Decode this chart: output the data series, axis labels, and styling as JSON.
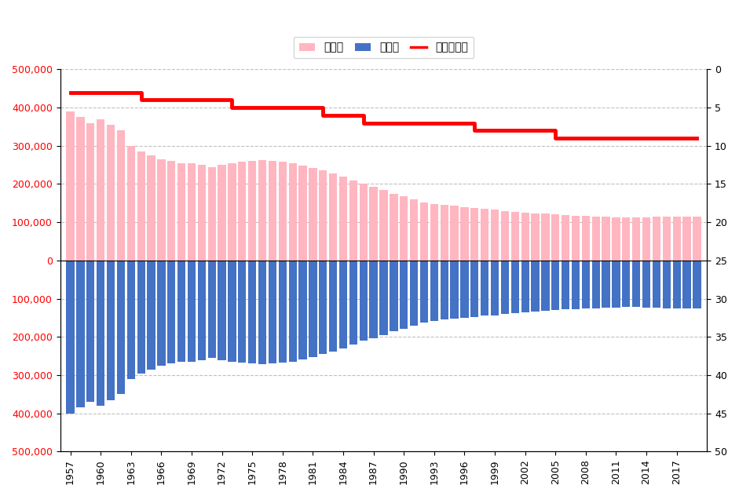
{
  "years": [
    1957,
    1958,
    1959,
    1960,
    1961,
    1962,
    1963,
    1964,
    1965,
    1966,
    1967,
    1968,
    1969,
    1970,
    1971,
    1972,
    1973,
    1974,
    1975,
    1976,
    1977,
    1978,
    1979,
    1980,
    1981,
    1982,
    1983,
    1984,
    1985,
    1986,
    1987,
    1988,
    1989,
    1990,
    1991,
    1992,
    1993,
    1994,
    1995,
    1996,
    1997,
    1998,
    1999,
    2000,
    2001,
    2002,
    2003,
    2004,
    2005,
    2006,
    2007,
    2008,
    2009,
    2010,
    2011,
    2012,
    2013,
    2014,
    2015,
    2016,
    2017,
    2018,
    2019
  ],
  "girls": [
    390000,
    375000,
    360000,
    370000,
    355000,
    340000,
    300000,
    285000,
    275000,
    265000,
    260000,
    255000,
    255000,
    250000,
    245000,
    250000,
    255000,
    258000,
    260000,
    262000,
    260000,
    258000,
    255000,
    248000,
    242000,
    235000,
    228000,
    220000,
    210000,
    200000,
    193000,
    185000,
    175000,
    168000,
    160000,
    152000,
    148000,
    145000,
    143000,
    140000,
    138000,
    135000,
    133000,
    130000,
    128000,
    125000,
    123000,
    122000,
    120000,
    118000,
    117000,
    116000,
    115000,
    114000,
    113000,
    112000,
    112000,
    113000,
    114000,
    115000,
    115000,
    115000,
    115000
  ],
  "boys": [
    400000,
    385000,
    370000,
    380000,
    365000,
    350000,
    310000,
    295000,
    285000,
    275000,
    270000,
    265000,
    265000,
    260000,
    255000,
    260000,
    265000,
    268000,
    270000,
    272000,
    270000,
    268000,
    265000,
    258000,
    252000,
    245000,
    238000,
    230000,
    220000,
    210000,
    203000,
    195000,
    185000,
    178000,
    170000,
    162000,
    158000,
    155000,
    153000,
    150000,
    148000,
    145000,
    143000,
    140000,
    138000,
    135000,
    133000,
    132000,
    130000,
    128000,
    127000,
    126000,
    125000,
    124000,
    123000,
    122000,
    122000,
    123000,
    124000,
    125000,
    125000,
    125000,
    125000
  ],
  "ranking": [
    3,
    3,
    3,
    3,
    3,
    3,
    3,
    4,
    4,
    4,
    4,
    4,
    4,
    4,
    4,
    4,
    5,
    5,
    5,
    5,
    5,
    5,
    5,
    5,
    5,
    6,
    6,
    6,
    6,
    7,
    7,
    7,
    7,
    7,
    7,
    7,
    7,
    7,
    7,
    7,
    8,
    8,
    8,
    8,
    8,
    8,
    8,
    8,
    9,
    9,
    9,
    9,
    9,
    9,
    9,
    9,
    9,
    9,
    9,
    9,
    9,
    9,
    9
  ],
  "girl_color": "#ffb6c1",
  "boy_color": "#4472c4",
  "ranking_color": "#ff0000",
  "left_positive_color": "#ff0000",
  "left_negative_color": "#4472c4",
  "legend_labels": [
    "女の子",
    "男の子",
    "ランキング"
  ],
  "ylim_left": [
    -500000,
    500000
  ],
  "ylim_right": [
    50,
    0
  ],
  "yticks_left": [
    -500000,
    -400000,
    -300000,
    -200000,
    -100000,
    0,
    100000,
    200000,
    300000,
    400000,
    500000
  ],
  "yticks_right": [
    0,
    5,
    10,
    15,
    20,
    25,
    30,
    35,
    40,
    45,
    50
  ],
  "xtick_years": [
    1957,
    1960,
    1963,
    1966,
    1969,
    1972,
    1975,
    1978,
    1981,
    1984,
    1987,
    1990,
    1993,
    1996,
    1999,
    2002,
    2005,
    2008,
    2011,
    2014,
    2017
  ],
  "xlim": [
    1956.0,
    2020.0
  ],
  "bar_width": 0.8,
  "grid_color": "#c0c0c0",
  "grid_linestyle": "--",
  "background_color": "#ffffff"
}
